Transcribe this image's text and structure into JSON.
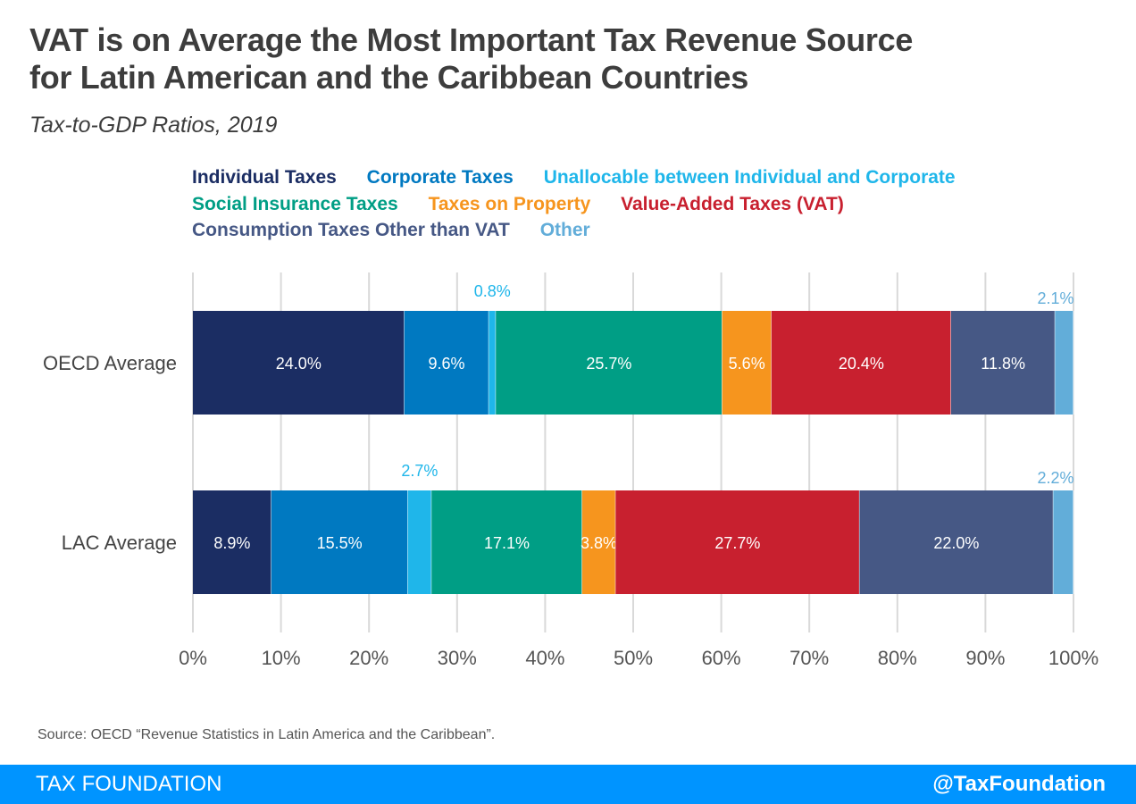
{
  "header": {
    "title_line1": "VAT is on Average the Most Important Tax Revenue Source",
    "title_line2": "for Latin American and the Caribbean Countries",
    "subtitle": "Tax-to-GDP Ratios, 2019"
  },
  "chart_data": {
    "type": "bar",
    "orientation": "horizontal",
    "stacked": true,
    "categories": [
      "OECD Average",
      "LAC Average"
    ],
    "series": [
      {
        "name": "Individual Taxes",
        "color": "#1b2d63",
        "values": [
          24.0,
          8.9
        ],
        "labels": [
          "24.0%",
          "8.9%"
        ]
      },
      {
        "name": "Corporate Taxes",
        "color": "#0079c1",
        "values": [
          9.6,
          15.5
        ],
        "labels": [
          "9.6%",
          "15.5%"
        ]
      },
      {
        "name": "Unallocable between Individual and Corporate",
        "color": "#1fb6ea",
        "values": [
          0.8,
          2.7
        ],
        "labels": [
          "0.8%",
          "2.7%"
        ]
      },
      {
        "name": "Social Insurance Taxes",
        "color": "#009e85",
        "values": [
          25.7,
          17.1
        ],
        "labels": [
          "25.7%",
          "17.1%"
        ]
      },
      {
        "name": "Taxes on Property",
        "color": "#f6951e",
        "values": [
          5.6,
          3.8
        ],
        "labels": [
          "5.6%",
          "3.8%"
        ]
      },
      {
        "name": "Value-Added Taxes (VAT)",
        "color": "#c8202f",
        "values": [
          20.4,
          27.7
        ],
        "labels": [
          "20.4%",
          "27.7%"
        ]
      },
      {
        "name": "Consumption Taxes Other than VAT",
        "color": "#465885",
        "values": [
          11.8,
          22.0
        ],
        "labels": [
          "11.8%",
          "22.0%"
        ]
      },
      {
        "name": "Other",
        "color": "#62add9",
        "values": [
          2.1,
          2.2
        ],
        "labels": [
          "2.1%",
          "2.2%"
        ]
      }
    ],
    "xlim": [
      0,
      100
    ],
    "xticks": [
      "0%",
      "10%",
      "20%",
      "30%",
      "40%",
      "50%",
      "60%",
      "70%",
      "80%",
      "90%",
      "100%"
    ],
    "grid": true,
    "legend_position": "top"
  },
  "source": "Source: OECD “Revenue Statistics in Latin America and the Caribbean”.",
  "footer": {
    "brand": "TAX FOUNDATION",
    "handle": "@TaxFoundation"
  }
}
